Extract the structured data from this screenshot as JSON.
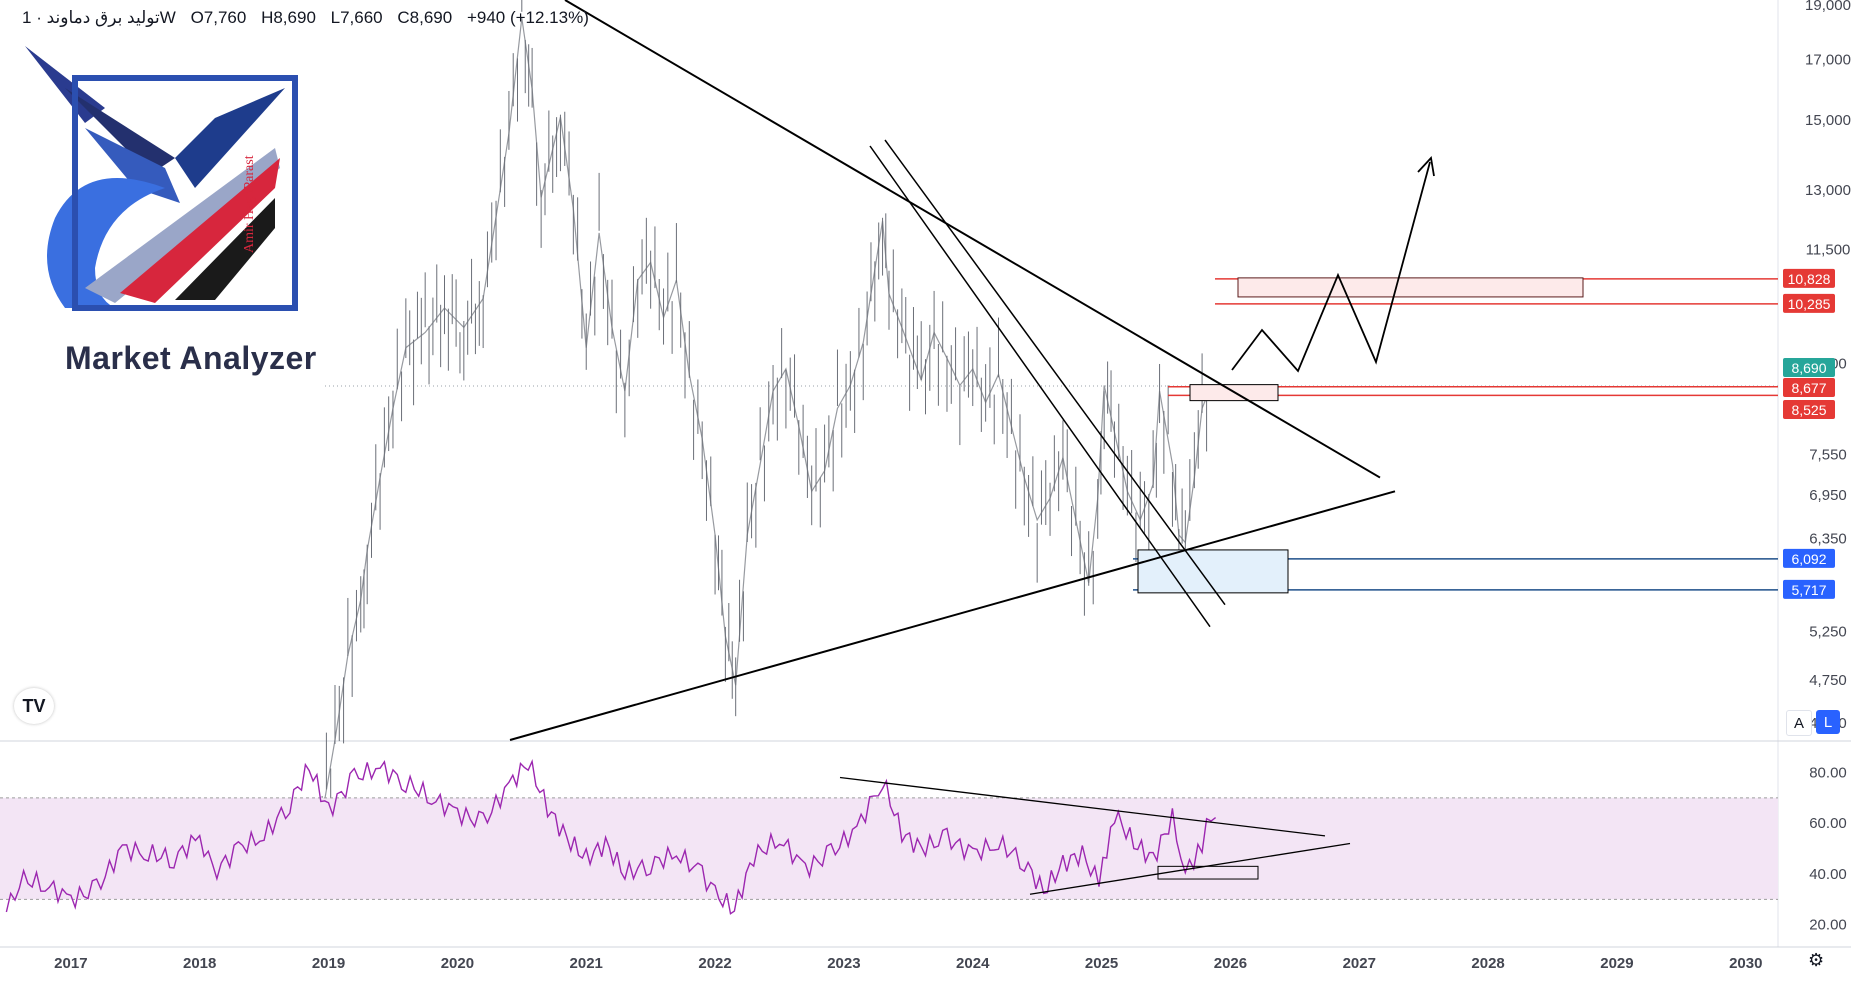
{
  "header": {
    "symbol": "تولید برق دماوند · 1W",
    "open": "O7,760",
    "high": "H8,690",
    "low": "L7,660",
    "close": "C8,690",
    "change": "+940 (+12.13%)"
  },
  "watermark": {
    "brand": "Market Analyzer",
    "author": "Amir HaghParast"
  },
  "controls": {
    "auto_label": "A",
    "log_label": "L",
    "tv_logo": "TV"
  },
  "colors": {
    "candle": "#6b6f78",
    "trendline": "#000000",
    "resistance_zone": "#c2185b",
    "support_zone": "#1e4f8a",
    "price_tag": "#26a69a",
    "red_tag": "#e53935",
    "blue_tag": "#2962ff",
    "rsi": "#9c27b0",
    "rsi_band": "#f3e5f5"
  },
  "chart_data": {
    "type": "line",
    "price_axis": {
      "ticks": [
        "19,000",
        "17,000",
        "15,000",
        "13,000",
        "11,500",
        "9,100",
        "7,550",
        "6,950",
        "6,350",
        "5,250",
        "4,750",
        "4,350"
      ],
      "ylim": [
        4200,
        19200
      ],
      "scale": "log"
    },
    "x_axis": {
      "ticks": [
        "2017",
        "2018",
        "2019",
        "2020",
        "2021",
        "2022",
        "2023",
        "2024",
        "2025",
        "2026",
        "2027",
        "2028",
        "2029",
        "2030"
      ],
      "xlim": [
        2016.45,
        2030.25
      ]
    },
    "series": [
      {
        "kind": "price",
        "points": [
          [
            2018.95,
            3600
          ],
          [
            2019.05,
            4200
          ],
          [
            2019.15,
            5000
          ],
          [
            2019.25,
            5600
          ],
          [
            2019.3,
            6200
          ],
          [
            2019.4,
            7200
          ],
          [
            2019.5,
            8300
          ],
          [
            2019.6,
            9400
          ],
          [
            2019.75,
            9700
          ],
          [
            2019.9,
            10200
          ],
          [
            2020.05,
            9800
          ],
          [
            2020.2,
            10400
          ],
          [
            2020.3,
            12300
          ],
          [
            2020.4,
            14600
          ],
          [
            2020.5,
            18500
          ],
          [
            2020.58,
            16000
          ],
          [
            2020.65,
            12800
          ],
          [
            2020.8,
            15100
          ],
          [
            2020.9,
            12500
          ],
          [
            2021.0,
            9400
          ],
          [
            2021.1,
            11900
          ],
          [
            2021.2,
            9800
          ],
          [
            2021.3,
            8600
          ],
          [
            2021.4,
            10800
          ],
          [
            2021.5,
            11200
          ],
          [
            2021.6,
            10000
          ],
          [
            2021.7,
            10800
          ],
          [
            2021.8,
            8900
          ],
          [
            2021.9,
            7800
          ],
          [
            2022.0,
            6400
          ],
          [
            2022.08,
            5200
          ],
          [
            2022.16,
            4700
          ],
          [
            2022.25,
            6400
          ],
          [
            2022.35,
            7400
          ],
          [
            2022.45,
            8600
          ],
          [
            2022.55,
            9000
          ],
          [
            2022.65,
            8000
          ],
          [
            2022.75,
            7000
          ],
          [
            2022.85,
            7300
          ],
          [
            2022.95,
            8300
          ],
          [
            2023.05,
            8700
          ],
          [
            2023.15,
            9500
          ],
          [
            2023.3,
            12200
          ],
          [
            2023.35,
            10500
          ],
          [
            2023.45,
            9800
          ],
          [
            2023.6,
            8800
          ],
          [
            2023.7,
            9700
          ],
          [
            2023.8,
            9200
          ],
          [
            2023.9,
            8700
          ],
          [
            2024.0,
            9000
          ],
          [
            2024.1,
            8400
          ],
          [
            2024.2,
            8900
          ],
          [
            2024.3,
            8000
          ],
          [
            2024.4,
            7200
          ],
          [
            2024.5,
            6600
          ],
          [
            2024.6,
            6900
          ],
          [
            2024.7,
            7500
          ],
          [
            2024.8,
            6600
          ],
          [
            2024.9,
            5800
          ],
          [
            2024.97,
            6900
          ],
          [
            2025.02,
            8700
          ],
          [
            2025.1,
            7900
          ],
          [
            2025.2,
            7000
          ],
          [
            2025.3,
            6600
          ],
          [
            2025.4,
            7100
          ],
          [
            2025.45,
            8600
          ],
          [
            2025.55,
            7400
          ],
          [
            2025.6,
            6400
          ],
          [
            2025.65,
            6300
          ],
          [
            2025.72,
            7200
          ],
          [
            2025.78,
            8300
          ],
          [
            2025.85,
            8690
          ]
        ]
      }
    ],
    "annotations": {
      "price_labels": [
        {
          "value": 10828,
          "text": "10,828",
          "color": "red"
        },
        {
          "value": 10285,
          "text": "10,285",
          "color": "red"
        },
        {
          "value": 8690,
          "text": "8,690",
          "color": "green"
        },
        {
          "value": 8677,
          "text": "8,677",
          "color": "red"
        },
        {
          "value": 8525,
          "text": "8,525",
          "color": "red"
        },
        {
          "value": 6092,
          "text": "6,092",
          "color": "blue"
        },
        {
          "value": 5717,
          "text": "5,717",
          "color": "blue"
        }
      ],
      "triangle_upper": [
        [
          2020.55,
          19000
        ],
        [
          2027.2,
          7000
        ]
      ],
      "triangle_lower": [
        [
          2020.55,
          3600
        ],
        [
          2027.2,
          7100
        ]
      ],
      "falling_channel": [
        [
          2023.45,
          12200
        ],
        [
          2026.25,
          5300
        ]
      ],
      "resistance_zone": [
        10285,
        10828
      ],
      "supply_box": [
        8500,
        8750
      ],
      "demand_zone": [
        5717,
        6092
      ],
      "projection": [
        [
          2025.95,
          8690
        ],
        [
          2026.1,
          9300
        ],
        [
          2026.4,
          8500
        ],
        [
          2026.75,
          10500
        ],
        [
          2027.05,
          8800
        ],
        [
          2027.6,
          14000
        ]
      ]
    },
    "rsi": {
      "ticks": [
        "80.00",
        "60.00",
        "40.00",
        "20.00"
      ],
      "ylim": [
        12,
        92
      ],
      "band": [
        30,
        70
      ],
      "points": [
        [
          2016.5,
          25
        ],
        [
          2016.6,
          38
        ],
        [
          2016.8,
          36
        ],
        [
          2017.0,
          30
        ],
        [
          2017.2,
          34
        ],
        [
          2017.4,
          50
        ],
        [
          2017.6,
          48
        ],
        [
          2017.8,
          46
        ],
        [
          2018.0,
          55
        ],
        [
          2018.1,
          40
        ],
        [
          2018.3,
          50
        ],
        [
          2018.5,
          55
        ],
        [
          2018.7,
          68
        ],
        [
          2018.85,
          82
        ],
        [
          2019.0,
          65
        ],
        [
          2019.2,
          78
        ],
        [
          2019.4,
          82
        ],
        [
          2019.6,
          76
        ],
        [
          2019.8,
          70
        ],
        [
          2020.0,
          64
        ],
        [
          2020.2,
          60
        ],
        [
          2020.4,
          75
        ],
        [
          2020.55,
          84
        ],
        [
          2020.7,
          66
        ],
        [
          2020.85,
          54
        ],
        [
          2021.0,
          46
        ],
        [
          2021.15,
          52
        ],
        [
          2021.3,
          40
        ],
        [
          2021.5,
          44
        ],
        [
          2021.7,
          48
        ],
        [
          2021.9,
          40
        ],
        [
          2022.0,
          32
        ],
        [
          2022.15,
          26
        ],
        [
          2022.3,
          47
        ],
        [
          2022.5,
          54
        ],
        [
          2022.7,
          42
        ],
        [
          2022.9,
          48
        ],
        [
          2023.1,
          58
        ],
        [
          2023.3,
          77
        ],
        [
          2023.45,
          56
        ],
        [
          2023.6,
          50
        ],
        [
          2023.8,
          54
        ],
        [
          2024.0,
          48
        ],
        [
          2024.2,
          52
        ],
        [
          2024.4,
          45
        ],
        [
          2024.55,
          33
        ],
        [
          2024.7,
          44
        ],
        [
          2024.85,
          48
        ],
        [
          2024.98,
          36
        ],
        [
          2025.1,
          64
        ],
        [
          2025.25,
          52
        ],
        [
          2025.4,
          46
        ],
        [
          2025.55,
          62
        ],
        [
          2025.65,
          40
        ],
        [
          2025.78,
          52
        ],
        [
          2025.85,
          64
        ],
        [
          2025.92,
          60
        ]
      ],
      "lines": {
        "upper": [
          [
            2022.7,
            78
          ],
          [
            2026.75,
            56
          ]
        ],
        "lower": [
          [
            2024.3,
            32
          ],
          [
            2026.9,
            49
          ]
        ],
        "box": [
          38,
          43
        ]
      }
    }
  }
}
